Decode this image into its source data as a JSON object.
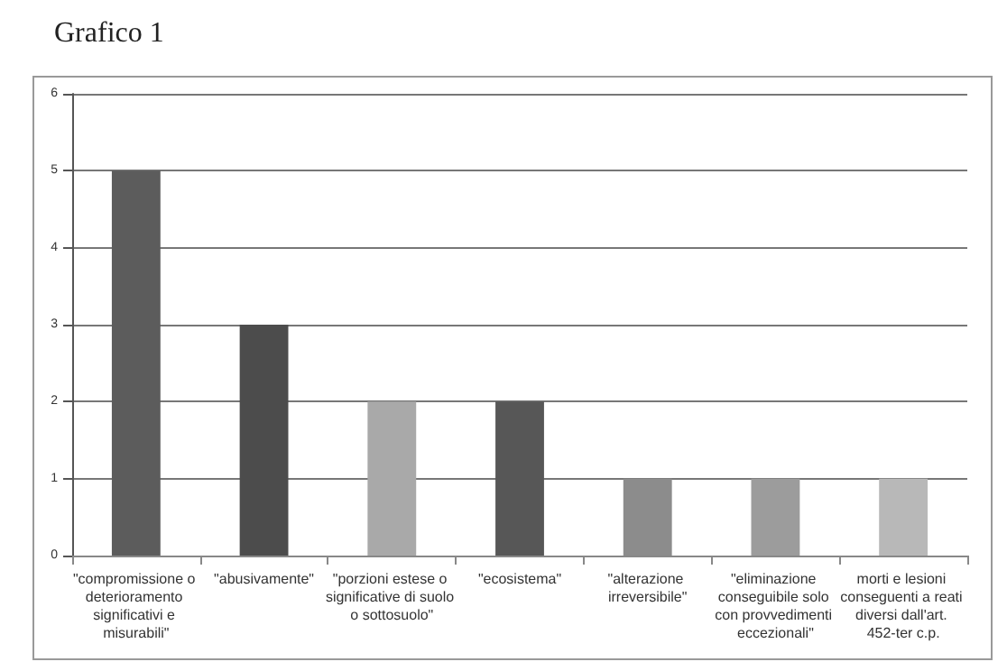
{
  "chart_data": {
    "type": "bar",
    "title": "Grafico 1",
    "categories": [
      "\"compromissione o deterioramento significativi e misurabili\"",
      "\"abusivamente\"",
      "\"porzioni estese o significative di suolo o sottosuolo\"",
      "\"ecosistema\"",
      "\"alterazione irreversibile\"",
      "\"eliminazione conseguibile solo con provvedimenti eccezionali\"",
      "morti e lesioni conseguenti a reati diversi dall'art. 452-ter c.p."
    ],
    "values": [
      5,
      3,
      2,
      2,
      1,
      1,
      1
    ],
    "colors": [
      "#5c5c5c",
      "#4c4c4c",
      "#a9a9a9",
      "#575757",
      "#8c8c8c",
      "#9c9c9c",
      "#b8b8b8"
    ],
    "ylim": [
      0,
      6
    ],
    "yticks": [
      0,
      1,
      2,
      3,
      4,
      5,
      6
    ],
    "grid": "y"
  }
}
